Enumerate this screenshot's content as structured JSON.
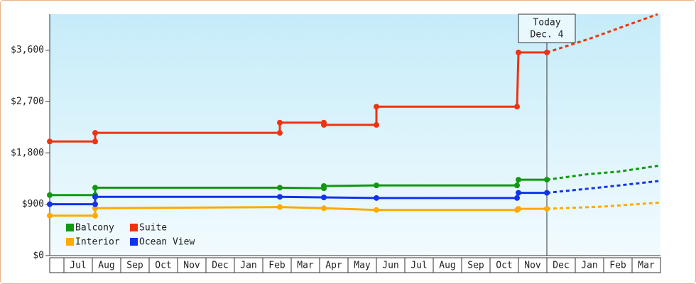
{
  "chart_data": {
    "type": "step-line",
    "categories": [
      null,
      "Jul",
      "Aug",
      "Sep",
      "Oct",
      "Nov",
      "Dec",
      "Jan",
      "Feb",
      "Mar",
      "Apr",
      "May",
      "Jun",
      "Jul",
      "Aug",
      "Sep",
      "Oct",
      "Nov",
      "Dec",
      "Jan",
      "Feb",
      "Mar"
    ],
    "xlim": [
      0,
      21.5
    ],
    "ylim": [
      0,
      4230
    ],
    "yticks": [
      {
        "value": 0,
        "label": "$0"
      },
      {
        "value": 900,
        "label": "$900"
      },
      {
        "value": 1800,
        "label": "$1,800"
      },
      {
        "value": 2700,
        "label": "$2,700"
      },
      {
        "value": 3600,
        "label": "$3,600"
      }
    ],
    "annotation": {
      "x": 17.5,
      "lines": [
        "Today",
        "Dec. 4"
      ]
    },
    "series": [
      {
        "name": "Balcony",
        "color": "#119911",
        "x": [
          0,
          1.6,
          1.6,
          8.1,
          9.65,
          9.65,
          11.5,
          16.45,
          16.5,
          17.5
        ],
        "values": [
          1060,
          1060,
          1190,
          1190,
          1180,
          1220,
          1230,
          1230,
          1330,
          1330
        ],
        "forecast": {
          "x": [
            17.5,
            19,
            20,
            21.5
          ],
          "values": [
            1330,
            1430,
            1470,
            1580
          ]
        }
      },
      {
        "name": "Suite",
        "color": "#ee3311",
        "x": [
          0,
          1.6,
          1.6,
          8.1,
          8.1,
          9.65,
          9.65,
          11.5,
          11.5,
          16.45,
          16.5,
          17.5
        ],
        "values": [
          2000,
          2000,
          2150,
          2150,
          2330,
          2330,
          2290,
          2290,
          2610,
          2610,
          3560,
          3560
        ],
        "forecast": {
          "x": [
            17.5,
            19,
            21.4
          ],
          "values": [
            3560,
            3800,
            4230
          ]
        }
      },
      {
        "name": "Interior",
        "color": "#ffaa00",
        "x": [
          0,
          1.6,
          1.6,
          8.1,
          9.65,
          11.5,
          16.45,
          16.5,
          17.5
        ],
        "values": [
          700,
          700,
          830,
          850,
          830,
          800,
          800,
          820,
          820
        ],
        "forecast": {
          "x": [
            17.5,
            19.5,
            21.5
          ],
          "values": [
            820,
            860,
            930
          ]
        }
      },
      {
        "name": "Ocean View",
        "color": "#1133ee",
        "x": [
          0,
          1.6,
          1.6,
          8.1,
          9.65,
          11.5,
          16.45,
          16.5,
          17.5
        ],
        "values": [
          900,
          900,
          1030,
          1030,
          1020,
          1010,
          1010,
          1100,
          1100
        ],
        "forecast": {
          "x": [
            17.5,
            19.5,
            21.5
          ],
          "values": [
            1100,
            1200,
            1310
          ]
        }
      }
    ]
  }
}
